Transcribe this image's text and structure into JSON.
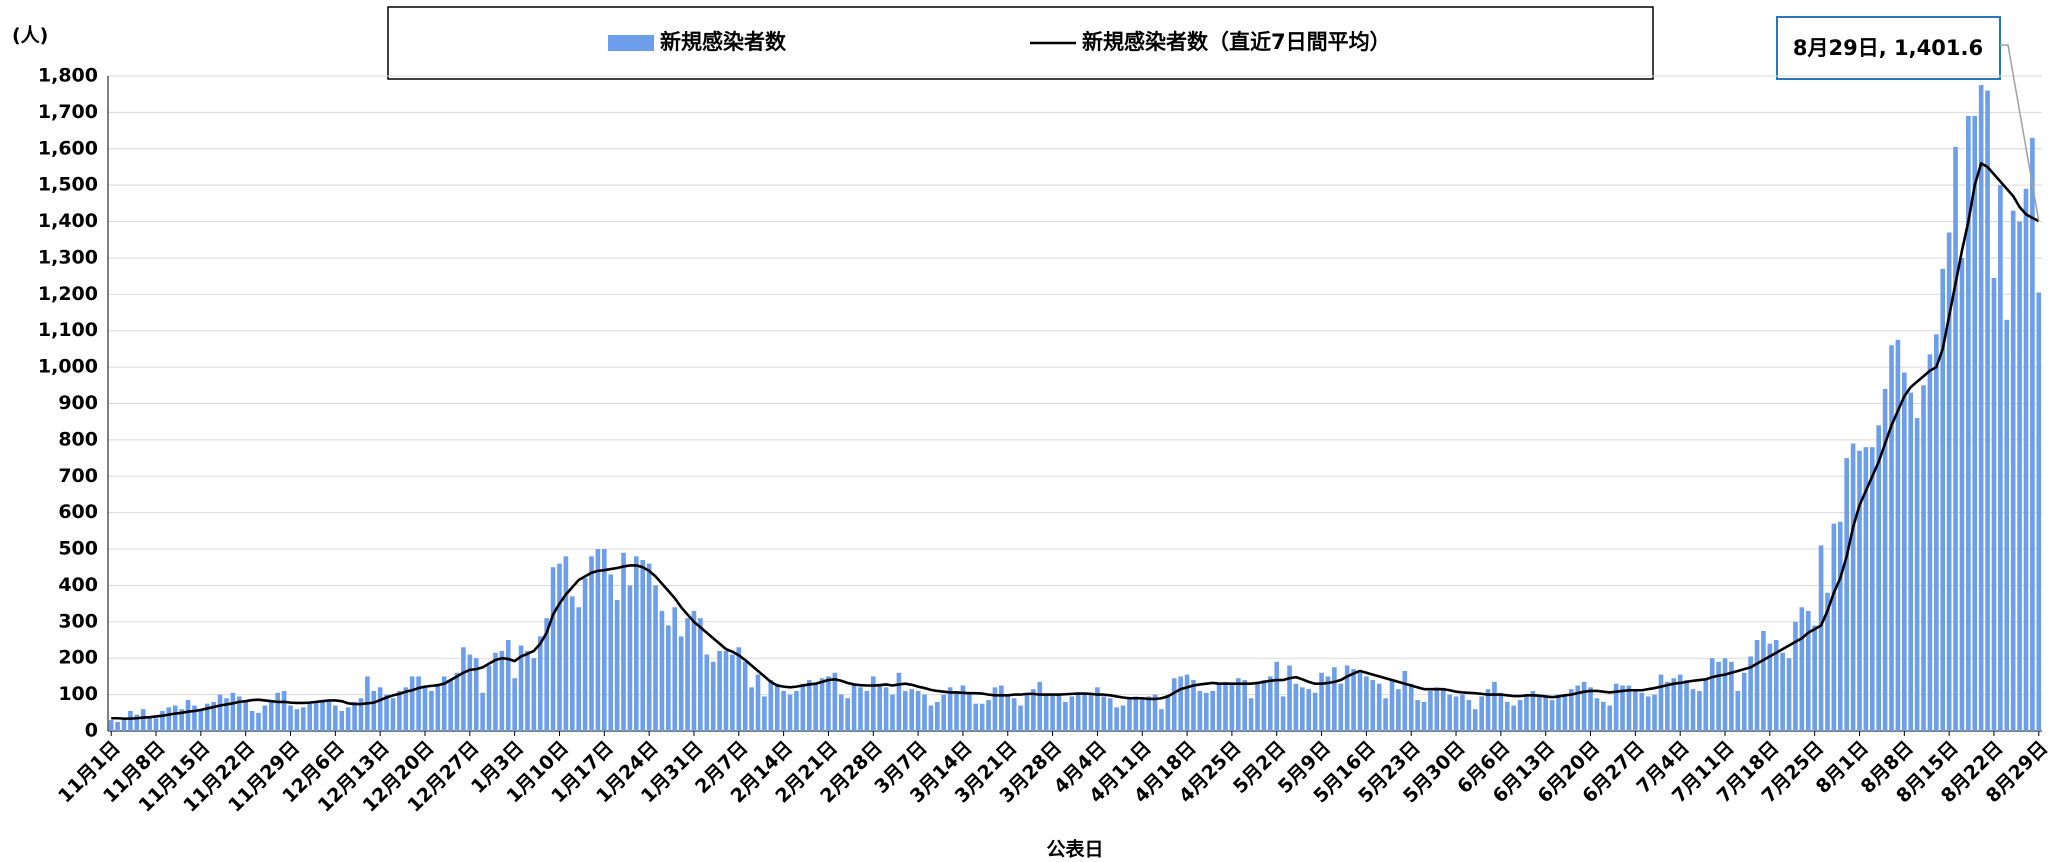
{
  "chart_data": {
    "type": "bar-line",
    "y_unit_label": "(人)",
    "x_label": "公表日",
    "annotation": "8月29日, 1,401.6",
    "ylim": [
      0,
      1800
    ],
    "yticks": [
      0,
      100,
      200,
      300,
      400,
      500,
      600,
      700,
      800,
      900,
      {
        "value": 1000,
        "label": "1,000"
      },
      {
        "value": 1100,
        "label": "1,100"
      },
      {
        "value": 1200,
        "label": "1,200"
      },
      {
        "value": 1300,
        "label": "1,300"
      },
      {
        "value": 1400,
        "label": "1,400"
      },
      {
        "value": 1500,
        "label": "1,500"
      },
      {
        "value": 1600,
        "label": "1,600"
      },
      {
        "value": 1700,
        "label": "1,700"
      },
      {
        "value": 1800,
        "label": "1,800"
      }
    ],
    "grid": true,
    "categories": [
      "11月1日",
      null,
      null,
      null,
      null,
      null,
      null,
      "11月8日",
      null,
      null,
      null,
      null,
      null,
      null,
      "11月15日",
      null,
      null,
      null,
      null,
      null,
      null,
      "11月22日",
      null,
      null,
      null,
      null,
      null,
      null,
      "11月29日",
      null,
      null,
      null,
      null,
      null,
      null,
      "12月6日",
      null,
      null,
      null,
      null,
      null,
      null,
      "12月13日",
      null,
      null,
      null,
      null,
      null,
      null,
      "12月20日",
      null,
      null,
      null,
      null,
      null,
      null,
      "12月27日",
      null,
      null,
      null,
      null,
      null,
      null,
      "1月3日",
      null,
      null,
      null,
      null,
      null,
      null,
      "1月10日",
      null,
      null,
      null,
      null,
      null,
      null,
      "1月17日",
      null,
      null,
      null,
      null,
      null,
      null,
      "1月24日",
      null,
      null,
      null,
      null,
      null,
      null,
      "1月31日",
      null,
      null,
      null,
      null,
      null,
      null,
      "2月7日",
      null,
      null,
      null,
      null,
      null,
      null,
      "2月14日",
      null,
      null,
      null,
      null,
      null,
      null,
      "2月21日",
      null,
      null,
      null,
      null,
      null,
      null,
      "2月28日",
      null,
      null,
      null,
      null,
      null,
      null,
      "3月7日",
      null,
      null,
      null,
      null,
      null,
      null,
      "3月14日",
      null,
      null,
      null,
      null,
      null,
      null,
      "3月21日",
      null,
      null,
      null,
      null,
      null,
      null,
      "3月28日",
      null,
      null,
      null,
      null,
      null,
      null,
      "4月4日",
      null,
      null,
      null,
      null,
      null,
      null,
      "4月11日",
      null,
      null,
      null,
      null,
      null,
      null,
      "4月18日",
      null,
      null,
      null,
      null,
      null,
      null,
      "4月25日",
      null,
      null,
      null,
      null,
      null,
      null,
      "5月2日",
      null,
      null,
      null,
      null,
      null,
      null,
      "5月9日",
      null,
      null,
      null,
      null,
      null,
      null,
      "5月16日",
      null,
      null,
      null,
      null,
      null,
      null,
      "5月23日",
      null,
      null,
      null,
      null,
      null,
      null,
      "5月30日",
      null,
      null,
      null,
      null,
      null,
      null,
      "6月6日",
      null,
      null,
      null,
      null,
      null,
      null,
      "6月13日",
      null,
      null,
      null,
      null,
      null,
      null,
      "6月20日",
      null,
      null,
      null,
      null,
      null,
      null,
      "6月27日",
      null,
      null,
      null,
      null,
      null,
      null,
      "7月4日",
      null,
      null,
      null,
      null,
      null,
      null,
      "7月11日",
      null,
      null,
      null,
      null,
      null,
      null,
      "7月18日",
      null,
      null,
      null,
      null,
      null,
      null,
      "7月25日",
      null,
      null,
      null,
      null,
      null,
      null,
      "8月1日",
      null,
      null,
      null,
      null,
      null,
      null,
      "8月8日",
      null,
      null,
      null,
      null,
      null,
      null,
      "8月15日",
      null,
      null,
      null,
      null,
      null,
      null,
      "8月22日",
      null,
      null,
      null,
      null,
      null,
      null,
      "8月29日"
    ],
    "series": [
      {
        "name": "新規感染者数",
        "kind": "bar",
        "color": "#6d9eeb",
        "values": [
          30,
          25,
          35,
          55,
          45,
          60,
          40,
          35,
          55,
          65,
          70,
          60,
          85,
          70,
          60,
          75,
          80,
          100,
          90,
          105,
          95,
          80,
          55,
          50,
          70,
          80,
          105,
          110,
          70,
          60,
          65,
          75,
          80,
          85,
          80,
          70,
          55,
          65,
          80,
          90,
          150,
          110,
          120,
          100,
          90,
          110,
          120,
          150,
          150,
          120,
          110,
          130,
          150,
          140,
          160,
          230,
          210,
          200,
          105,
          180,
          215,
          220,
          250,
          145,
          235,
          220,
          200,
          260,
          310,
          450,
          460,
          480,
          370,
          340,
          420,
          480,
          500,
          500,
          430,
          360,
          490,
          400,
          480,
          470,
          460,
          400,
          330,
          290,
          340,
          260,
          310,
          330,
          310,
          210,
          190,
          220,
          220,
          210,
          230,
          190,
          120,
          155,
          95,
          140,
          130,
          110,
          100,
          110,
          130,
          140,
          130,
          145,
          150,
          160,
          100,
          90,
          130,
          120,
          110,
          150,
          130,
          120,
          100,
          160,
          110,
          115,
          110,
          100,
          70,
          80,
          100,
          120,
          110,
          125,
          100,
          75,
          75,
          85,
          120,
          125,
          100,
          90,
          70,
          100,
          115,
          135,
          100,
          100,
          100,
          80,
          95,
          105,
          100,
          100,
          120,
          95,
          90,
          65,
          70,
          90,
          95,
          90,
          95,
          100,
          60,
          100,
          145,
          150,
          155,
          140,
          110,
          105,
          110,
          130,
          135,
          130,
          145,
          140,
          90,
          135,
          140,
          150,
          190,
          95,
          180,
          130,
          120,
          115,
          105,
          160,
          150,
          175,
          130,
          180,
          170,
          160,
          150,
          140,
          130,
          90,
          140,
          115,
          165,
          130,
          85,
          80,
          110,
          120,
          115,
          100,
          95,
          100,
          85,
          60,
          95,
          115,
          135,
          105,
          80,
          70,
          85,
          95,
          110,
          100,
          95,
          85,
          100,
          95,
          115,
          125,
          135,
          120,
          90,
          80,
          70,
          130,
          125,
          125,
          110,
          105,
          95,
          100,
          155,
          135,
          145,
          155,
          140,
          115,
          110,
          140,
          200,
          190,
          200,
          190,
          110,
          160,
          205,
          250,
          275,
          240,
          250,
          215,
          200,
          300,
          340,
          330,
          290,
          510,
          380,
          570,
          575,
          750,
          790,
          770,
          780,
          780,
          840,
          940,
          1060,
          1075,
          985,
          930,
          860,
          950,
          1035,
          1090,
          1270,
          1370,
          1605,
          1300,
          1690,
          1690,
          1775,
          1760,
          1245,
          1500,
          1130,
          1430,
          1400,
          1490,
          1630,
          1205
        ]
      },
      {
        "name": "新規感染者数（直近7日間平均）",
        "kind": "line",
        "color": "#000000",
        "values": [
          35,
          35,
          34,
          34,
          35,
          37,
          38,
          40,
          42,
          45,
          48,
          50,
          53,
          55,
          58,
          62,
          66,
          70,
          73,
          76,
          80,
          82,
          85,
          86,
          84,
          82,
          80,
          80,
          78,
          77,
          77,
          78,
          80,
          82,
          84,
          84,
          82,
          76,
          74,
          74,
          76,
          78,
          85,
          92,
          98,
          102,
          108,
          112,
          118,
          122,
          124,
          126,
          130,
          140,
          150,
          160,
          168,
          170,
          175,
          185,
          195,
          200,
          198,
          192,
          205,
          212,
          220,
          240,
          270,
          320,
          350,
          375,
          395,
          415,
          425,
          435,
          440,
          442,
          445,
          448,
          452,
          455,
          455,
          450,
          440,
          425,
          405,
          385,
          365,
          340,
          320,
          300,
          285,
          270,
          255,
          240,
          225,
          218,
          208,
          195,
          180,
          165,
          150,
          135,
          125,
          122,
          120,
          122,
          125,
          128,
          130,
          135,
          140,
          142,
          138,
          132,
          128,
          126,
          125,
          125,
          126,
          128,
          125,
          128,
          130,
          127,
          122,
          118,
          113,
          110,
          108,
          106,
          106,
          105,
          104,
          104,
          103,
          100,
          98,
          98,
          98,
          100,
          100,
          102,
          102,
          100,
          100,
          100,
          100,
          101,
          102,
          103,
          103,
          102,
          100,
          100,
          98,
          95,
          92,
          90,
          90,
          90,
          88,
          88,
          90,
          95,
          105,
          115,
          120,
          125,
          128,
          130,
          132,
          130,
          130,
          130,
          130,
          130,
          130,
          132,
          135,
          138,
          140,
          140,
          145,
          148,
          142,
          135,
          130,
          130,
          132,
          135,
          140,
          150,
          158,
          165,
          160,
          155,
          150,
          145,
          140,
          135,
          130,
          125,
          120,
          115,
          115,
          115,
          115,
          112,
          108,
          106,
          105,
          104,
          102,
          100,
          100,
          100,
          98,
          96,
          96,
          98,
          98,
          97,
          95,
          93,
          95,
          98,
          100,
          104,
          108,
          110,
          110,
          108,
          106,
          108,
          110,
          112,
          112,
          112,
          115,
          118,
          122,
          126,
          130,
          132,
          135,
          138,
          140,
          142,
          148,
          152,
          155,
          160,
          165,
          170,
          175,
          185,
          195,
          205,
          215,
          225,
          235,
          245,
          255,
          270,
          280,
          290,
          330,
          380,
          420,
          480,
          560,
          620,
          660,
          700,
          740,
          790,
          840,
          880,
          920,
          945,
          960,
          975,
          990,
          1000,
          1050,
          1140,
          1230,
          1320,
          1400,
          1500,
          1560,
          1550,
          1530,
          1510,
          1490,
          1470,
          1440,
          1420,
          1410,
          1401.6
        ]
      }
    ]
  }
}
